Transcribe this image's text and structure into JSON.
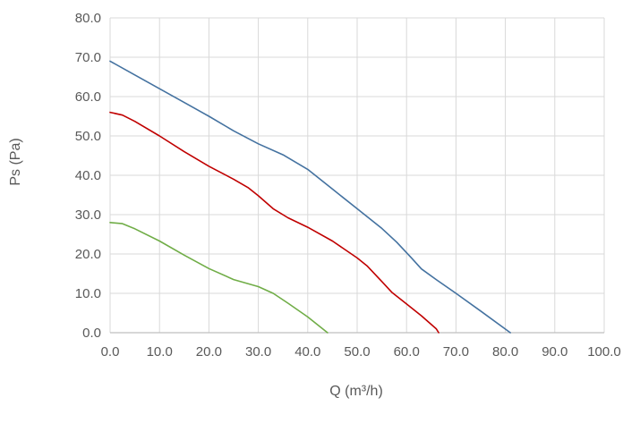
{
  "chart_data": {
    "type": "line",
    "xlabel": "Q (m³/h)",
    "ylabel": "Ps (Pa)",
    "xlim": [
      0,
      100
    ],
    "ylim": [
      0,
      80
    ],
    "x_ticks": [
      "0.0",
      "10.0",
      "20.0",
      "30.0",
      "40.0",
      "50.0",
      "60.0",
      "70.0",
      "80.0",
      "90.0",
      "100.0"
    ],
    "y_ticks": [
      "0.0",
      "10.0",
      "20.0",
      "30.0",
      "40.0",
      "50.0",
      "60.0",
      "70.0",
      "80.0"
    ],
    "grid": true,
    "legend": "none",
    "series": [
      {
        "color": "#4472a0",
        "points": [
          [
            0,
            69
          ],
          [
            5,
            65.5
          ],
          [
            10,
            62
          ],
          [
            15,
            58.5
          ],
          [
            20,
            55
          ],
          [
            25,
            51.3
          ],
          [
            30,
            48
          ],
          [
            35,
            45.2
          ],
          [
            40,
            41.5
          ],
          [
            45,
            36.5
          ],
          [
            50,
            31.5
          ],
          [
            55,
            26.5
          ],
          [
            58,
            23
          ],
          [
            61,
            19
          ],
          [
            63,
            16.2
          ],
          [
            66,
            13.5
          ],
          [
            70,
            10
          ],
          [
            75,
            5.5
          ],
          [
            81,
            0
          ]
        ]
      },
      {
        "color": "#c00000",
        "points": [
          [
            0,
            56
          ],
          [
            2.5,
            55.3
          ],
          [
            5,
            53.7
          ],
          [
            10,
            50
          ],
          [
            15,
            46
          ],
          [
            20,
            42.3
          ],
          [
            25,
            39
          ],
          [
            28,
            36.8
          ],
          [
            30,
            34.8
          ],
          [
            33,
            31.5
          ],
          [
            36,
            29.2
          ],
          [
            40,
            26.8
          ],
          [
            45,
            23.3
          ],
          [
            50,
            19
          ],
          [
            52,
            17
          ],
          [
            55,
            13
          ],
          [
            57,
            10.3
          ],
          [
            60,
            7.3
          ],
          [
            63,
            4.3
          ],
          [
            66,
            1
          ],
          [
            66.5,
            0
          ]
        ]
      },
      {
        "color": "#70ad47",
        "points": [
          [
            0,
            28
          ],
          [
            2.5,
            27.7
          ],
          [
            5,
            26.4
          ],
          [
            10,
            23.3
          ],
          [
            15,
            19.7
          ],
          [
            20,
            16.3
          ],
          [
            25,
            13.5
          ],
          [
            30,
            11.7
          ],
          [
            33,
            10
          ],
          [
            36,
            7.5
          ],
          [
            40,
            4
          ],
          [
            44,
            0
          ]
        ]
      }
    ]
  }
}
